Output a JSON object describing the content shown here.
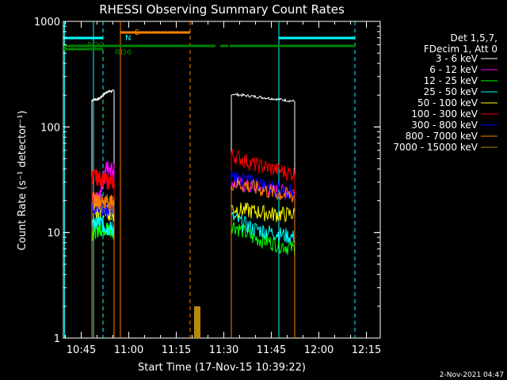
{
  "chart_data": {
    "type": "line",
    "title": "RHESSI Observing Summary Count Rates",
    "xlabel": "Start Time (17-Nov-15 10:39:22)",
    "ylabel": "Count Rate (s⁻¹ detector⁻¹)",
    "yscale": "log",
    "ylim": [
      1,
      1000
    ],
    "xlim_minutes": [
      0,
      100
    ],
    "x_ticks": [
      {
        "t": 5.63,
        "label": "10:45"
      },
      {
        "t": 20.63,
        "label": "11:00"
      },
      {
        "t": 35.63,
        "label": "11:15"
      },
      {
        "t": 50.63,
        "label": "11:30"
      },
      {
        "t": 65.63,
        "label": "11:45"
      },
      {
        "t": 80.63,
        "label": "12:00"
      },
      {
        "t": 95.63,
        "label": "12:15"
      }
    ],
    "y_ticks": [
      {
        "v": 1,
        "label": "1"
      },
      {
        "v": 10,
        "label": "10"
      },
      {
        "v": 100,
        "label": "100"
      },
      {
        "v": 1000,
        "label": "1000"
      }
    ],
    "legend_header": [
      "Det 1,5,7,",
      "FDecim 1, Att 0"
    ],
    "series": [
      {
        "name": "3 - 6 keV",
        "color": "#ffffff",
        "seg1": [
          180,
          185,
          215,
          220
        ],
        "seg2": [
          205,
          195,
          185,
          175
        ]
      },
      {
        "name": "6 - 12 keV",
        "color": "#ff00ff",
        "seg1": [
          20,
          21,
          42,
          40
        ],
        "seg2": [
          30,
          27,
          25,
          24
        ]
      },
      {
        "name": "12 - 25 keV",
        "color": "#00ff00",
        "seg1": [
          10,
          11,
          11,
          10
        ],
        "seg2": [
          12,
          9,
          8,
          7
        ]
      },
      {
        "name": "25 - 50 keV",
        "color": "#00ffff",
        "seg1": [
          12,
          13,
          11,
          11
        ],
        "seg2": [
          14,
          11,
          10,
          9
        ]
      },
      {
        "name": "50 - 100 keV",
        "color": "#ffff00",
        "seg1": [
          17,
          16,
          16,
          15
        ],
        "seg2": [
          17,
          16,
          15,
          15
        ]
      },
      {
        "name": "100 - 300 keV",
        "color": "#ff0000",
        "seg1": [
          35,
          33,
          31,
          30
        ],
        "seg2": [
          55,
          45,
          40,
          36
        ]
      },
      {
        "name": "300 - 800 keV",
        "color": "#0000ff",
        "seg1": [
          18,
          17,
          17,
          16
        ],
        "seg2": [
          35,
          30,
          27,
          24
        ]
      },
      {
        "name": "800 - 7000 keV",
        "color": "#ff8000",
        "seg1": [
          21,
          20,
          20,
          19
        ],
        "seg2": [
          30,
          27,
          24,
          22
        ]
      },
      {
        "name": "7000 - 15000 keV",
        "color": "#b8860b",
        "seg1": [],
        "seg2": []
      }
    ],
    "segments_time": {
      "seg1": [
        9,
        16
      ],
      "seg2": [
        53,
        73
      ]
    },
    "flags": {
      "N": {
        "label": "N",
        "color": "#00ffff",
        "intervals": [
          [
            0,
            12.5
          ],
          [
            68,
            92
          ]
        ]
      },
      "S": {
        "label": "S",
        "color": "#ff8000",
        "intervals": [
          [
            18,
            40
          ]
        ]
      },
      "RD0": {
        "label": "RD0",
        "color": "#008000",
        "intervals": [
          [
            0,
            12.5
          ]
        ]
      },
      "RD6": {
        "label": "RD6",
        "color": "#008000",
        "intervals": [
          [
            0,
            48
          ],
          [
            49.5,
            52
          ],
          [
            52.5,
            92
          ]
        ]
      }
    },
    "vlines": [
      {
        "t": 0.4,
        "color": "#00ffff",
        "dash": false
      },
      {
        "t": 9.5,
        "color": "#00ffff",
        "dash": false
      },
      {
        "t": 12.5,
        "color": "#00ffff",
        "dash": true
      },
      {
        "t": 18,
        "color": "#ff8000",
        "dash": false
      },
      {
        "t": 40,
        "color": "#ff8000",
        "dash": true
      },
      {
        "t": 68,
        "color": "#00ffff",
        "dash": false
      },
      {
        "t": 92,
        "color": "#00ffff",
        "dash": true
      }
    ],
    "attenuator_bars": {
      "t_start": 41.5,
      "t_end": 43,
      "color": "#b8860b",
      "value": 2
    },
    "footer_date": "2-Nov-2021 04:47"
  }
}
